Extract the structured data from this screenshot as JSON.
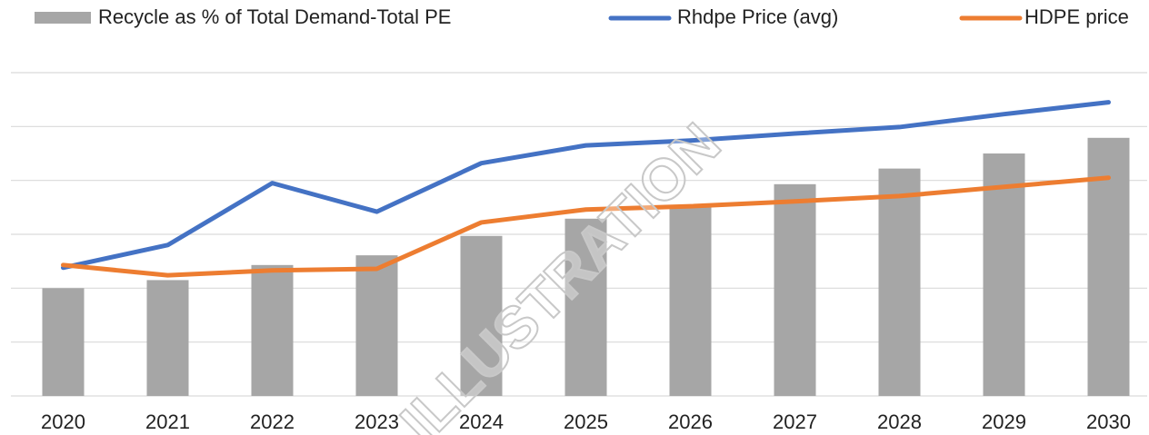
{
  "chart_data": {
    "type": "bar_line",
    "categories": [
      "2020",
      "2021",
      "2022",
      "2023",
      "2024",
      "2025",
      "2026",
      "2027",
      "2028",
      "2029",
      "2030"
    ],
    "series": [
      {
        "name": "Recycle as % of Total Demand-Total PE",
        "color": "#a6a6a6",
        "kind": "bar",
        "values": [
          2.0,
          2.15,
          2.43,
          2.61,
          2.97,
          3.29,
          3.5,
          3.93,
          4.22,
          4.5,
          4.79
        ]
      },
      {
        "name": "Rhdpe Price (avg)",
        "color": "#4472c4",
        "kind": "line",
        "values": [
          2.38,
          2.8,
          3.95,
          3.42,
          4.32,
          4.65,
          4.74,
          4.87,
          4.99,
          5.23,
          5.45
        ]
      },
      {
        "name": "HDPE price",
        "color": "#ed7d31",
        "kind": "line",
        "values": [
          2.43,
          2.24,
          2.33,
          2.36,
          3.22,
          3.46,
          3.52,
          3.61,
          3.71,
          3.88,
          4.05
        ]
      }
    ],
    "ylim": [
      0,
      6
    ],
    "yticks": [
      0,
      1,
      2,
      3,
      4,
      5,
      6
    ],
    "grid": true,
    "annotation": "ILLUSTRATION"
  }
}
